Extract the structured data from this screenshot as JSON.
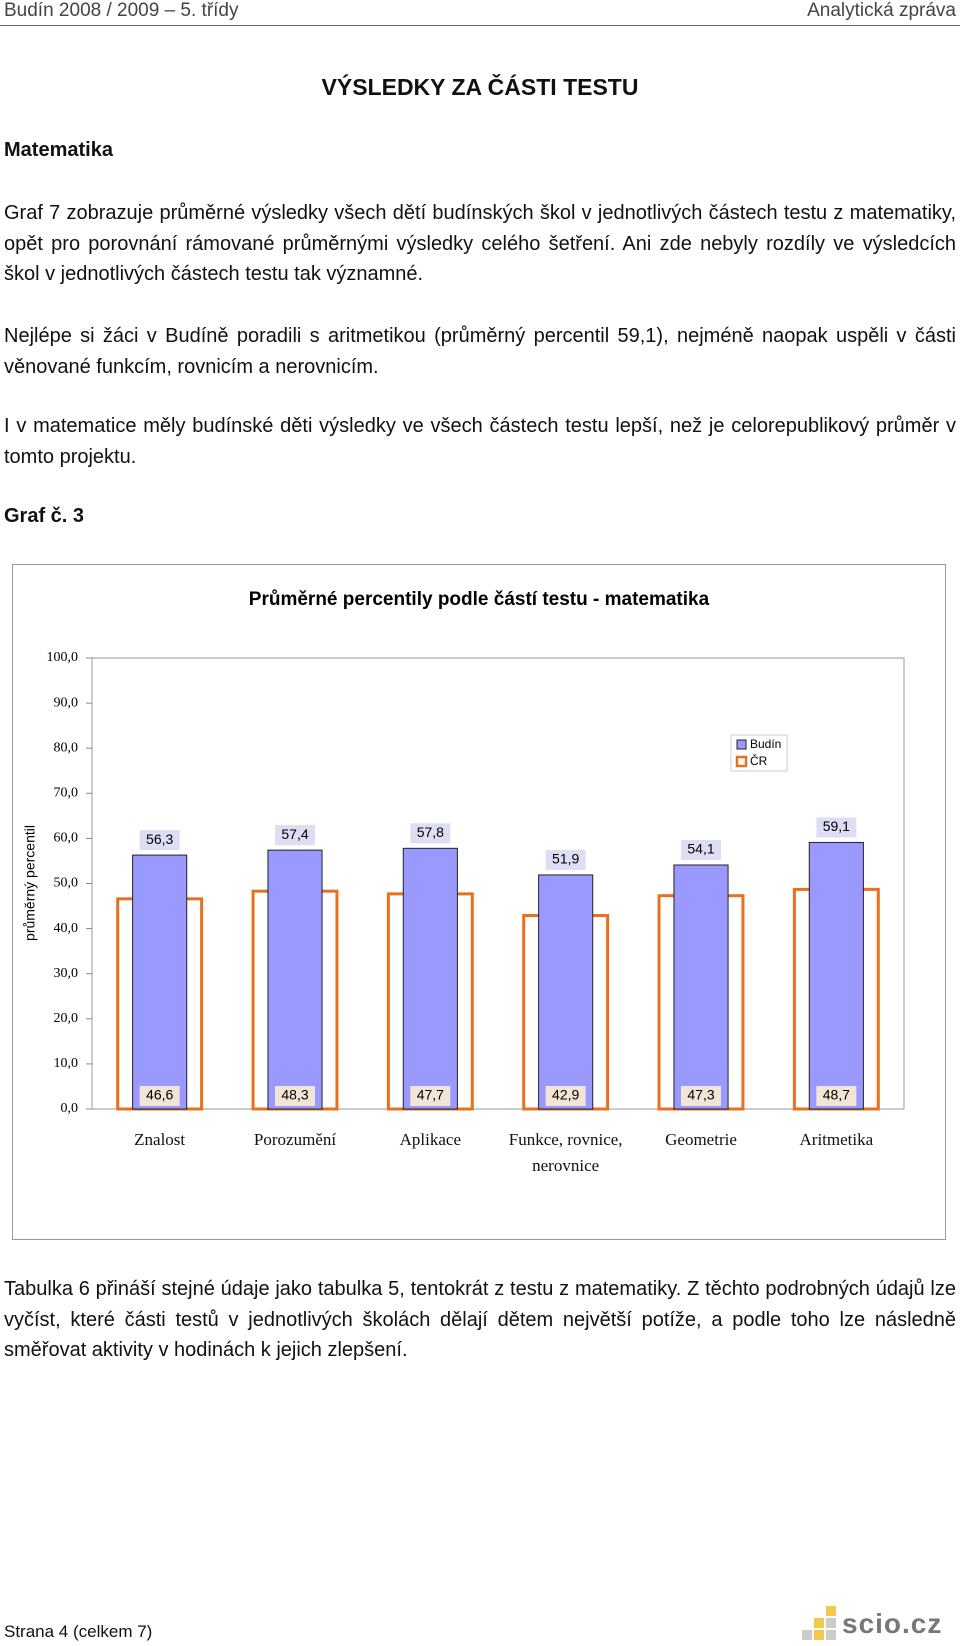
{
  "header": {
    "left": "Budín 2008 / 2009 – 5. třídy",
    "right": "Analytická zpráva"
  },
  "title": "VÝSLEDKY ZA ČÁSTI TESTU",
  "section": "Matematika",
  "paragraphs": [
    "Graf 7 zobrazuje průměrné výsledky všech dětí budínských škol v jednotlivých částech testu z matematiky, opět pro porovnání rámované průměrnými výsledky celého šetření. Ani zde nebyly rozdíly ve výsledcích škol v jednotlivých částech testu tak významné.",
    "Nejlépe si žáci v Budíně poradili s aritmetikou (průměrný percentil 59,1), nejméně naopak uspěli v části věnované funkcím, rovnicím a nerovnicím.",
    "I v matematice měly budínské děti výsledky ve všech částech testu lepší, než je celorepublikový průměr v tomto projektu."
  ],
  "figure_label": "Graf č. 3",
  "chart_data": {
    "type": "bar",
    "title": "Průměrné percentily podle částí testu - matematika",
    "y_label": "průměrný percentil",
    "categories": [
      "Znalost",
      "Porozumění",
      "Aplikace",
      "Funkce, rovnice, nerovnice",
      "Geometrie",
      "Aritmetika"
    ],
    "series": [
      {
        "name": "Budín",
        "color": "#9999ff",
        "values": [
          56.3,
          57.4,
          57.8,
          51.9,
          54.1,
          59.1
        ],
        "value_labels": [
          "56,3",
          "57,4",
          "57,8",
          "51,9",
          "54,1",
          "59,1"
        ]
      },
      {
        "name": "ČR",
        "color": "#e8701e",
        "values": [
          46.6,
          48.3,
          47.7,
          42.9,
          47.3,
          48.7
        ],
        "value_labels": [
          "46,6",
          "48,3",
          "47,7",
          "42,9",
          "47,3",
          "48,7"
        ]
      }
    ],
    "ylim": [
      0,
      100
    ],
    "yticks": [
      {
        "value": 0,
        "label": "0,0"
      },
      {
        "value": 10,
        "label": "10,0"
      },
      {
        "value": 20,
        "label": "20,0"
      },
      {
        "value": 30,
        "label": "30,0"
      },
      {
        "value": 40,
        "label": "40,0"
      },
      {
        "value": 50,
        "label": "50,0"
      },
      {
        "value": 60,
        "label": "60,0"
      },
      {
        "value": 70,
        "label": "70,0"
      },
      {
        "value": 80,
        "label": "80,0"
      },
      {
        "value": 90,
        "label": "90,0"
      },
      {
        "value": 100,
        "label": "100,0"
      }
    ],
    "grid": false,
    "legend": "right"
  },
  "after_paragraph": "Tabulka 6 přináší stejné údaje jako tabulka 5, tentokrát z testu z matematiky. Z těchto podrobných údajů lze vyčíst, které části testů v jednotlivých školách dělají dětem největší potíže, a podle toho lze následně směřovat aktivity v hodinách k jejich zlepšení.",
  "footer": {
    "page": "Strana 4 (celkem 7)",
    "logo": "scio.cz"
  }
}
